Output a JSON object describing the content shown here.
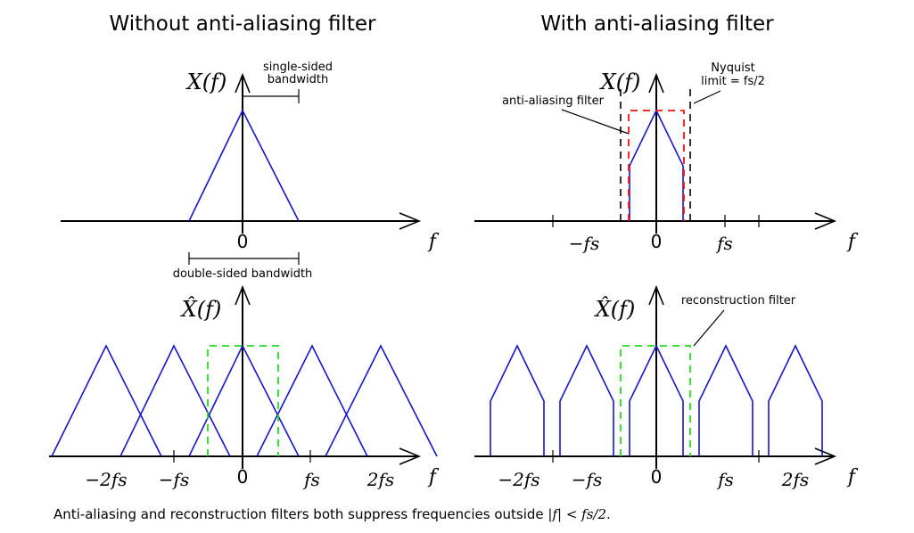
{
  "titles": {
    "left": "Without anti-aliasing filter",
    "right": "With anti-aliasing filter"
  },
  "axis_labels": {
    "x_of_f": "X(f)",
    "x_hat_of_f": "X̂(f)",
    "f": "f"
  },
  "ticks": {
    "zero": "0",
    "fs": "fs",
    "neg_fs": "−fs",
    "two_fs": "2fs",
    "neg_two_fs": "−2fs"
  },
  "annotations": {
    "single_sided_1": "single-sided",
    "single_sided_2": "bandwidth",
    "double_sided": "double-sided bandwidth",
    "anti_aliasing_filter": "anti-aliasing filter",
    "nyquist_1": "Nyquist",
    "nyquist_2": "limit = fs/2",
    "reconstruction_filter": "reconstruction filter"
  },
  "caption": {
    "text_before": "Anti-aliasing and reconstruction filters both suppress frequencies outside ",
    "math": "|f| < fs/2",
    "text_after": "."
  },
  "colors": {
    "spectrum": "#1414d2",
    "reconstruction_filter": "#22dd22",
    "anti_aliasing_filter": "#ff1111",
    "axis": "#000000"
  }
}
